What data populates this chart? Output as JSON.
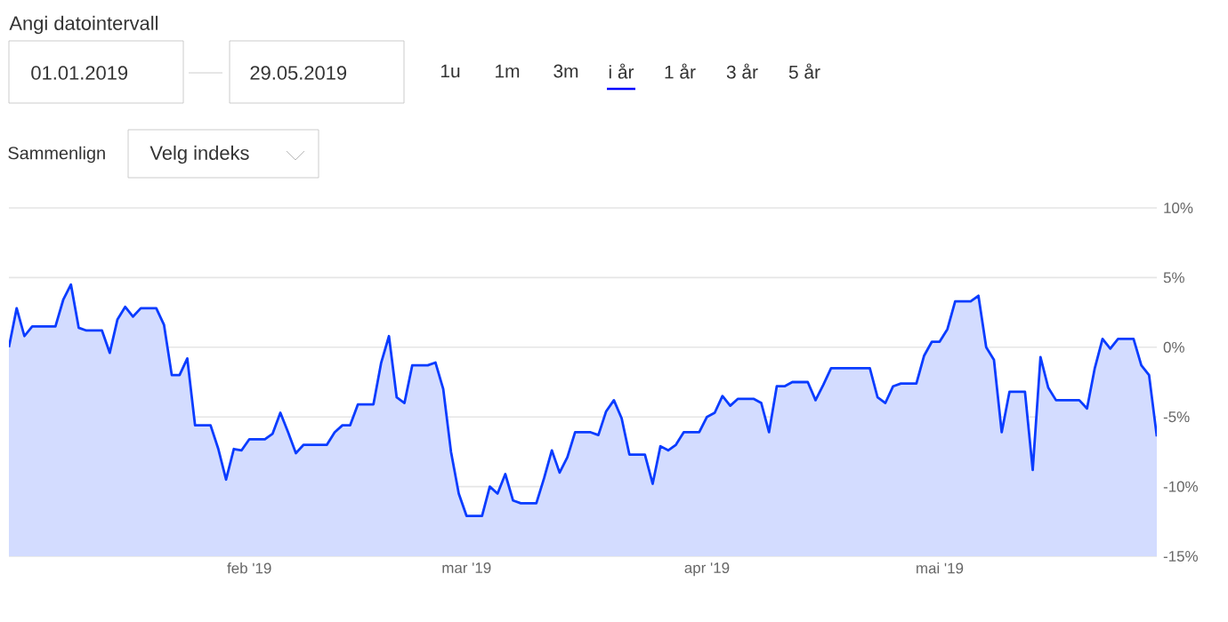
{
  "chart_data": {
    "type": "area",
    "annotations": [
      "Angi datointervall",
      "01.01.2019",
      "29.05.2019",
      "1u",
      "1m",
      "3m",
      "i år",
      "1 år",
      "3 år",
      "5 år",
      "Sammenlign",
      "Velg indeks"
    ],
    "x": [
      "2019-01-01",
      "2019-01-02",
      "2019-01-03",
      "2019-01-04",
      "2019-01-07",
      "2019-01-08",
      "2019-01-09",
      "2019-01-10",
      "2019-01-11",
      "2019-01-13",
      "2019-01-14",
      "2019-01-15",
      "2019-01-16",
      "2019-01-17",
      "2019-01-18",
      "2019-01-20",
      "2019-01-21",
      "2019-01-22",
      "2019-01-23",
      "2019-01-24",
      "2019-01-25",
      "2019-01-27",
      "2019-01-28",
      "2019-01-29",
      "2019-01-30",
      "2019-01-31",
      "2019-02-01",
      "2019-02-03",
      "2019-02-04",
      "2019-02-05",
      "2019-02-06",
      "2019-02-07",
      "2019-02-08",
      "2019-02-11",
      "2019-02-12",
      "2019-02-13",
      "2019-02-14",
      "2019-02-15",
      "2019-02-17",
      "2019-02-18",
      "2019-02-19",
      "2019-02-20",
      "2019-02-21",
      "2019-02-22",
      "2019-02-24",
      "2019-02-25",
      "2019-02-26",
      "2019-02-27",
      "2019-02-28",
      "2019-03-01",
      "2019-03-03",
      "2019-03-04",
      "2019-03-05",
      "2019-03-06",
      "2019-03-07",
      "2019-03-08",
      "2019-03-10",
      "2019-03-11",
      "2019-03-12",
      "2019-03-13",
      "2019-03-14",
      "2019-03-15",
      "2019-03-17",
      "2019-03-18",
      "2019-03-19",
      "2019-03-20",
      "2019-03-21",
      "2019-03-22",
      "2019-03-24",
      "2019-03-25",
      "2019-03-26",
      "2019-03-27",
      "2019-03-28",
      "2019-03-29",
      "2019-03-31",
      "2019-04-01",
      "2019-04-02",
      "2019-04-03",
      "2019-04-04",
      "2019-04-05",
      "2019-04-07",
      "2019-04-08",
      "2019-04-09",
      "2019-04-10",
      "2019-04-11",
      "2019-04-12",
      "2019-04-14",
      "2019-04-15",
      "2019-04-16",
      "2019-04-17",
      "2019-04-22",
      "2019-04-23",
      "2019-04-24",
      "2019-04-25",
      "2019-04-26",
      "2019-04-28",
      "2019-04-29",
      "2019-04-30",
      "2019-05-01",
      "2019-05-02",
      "2019-05-03",
      "2019-05-05",
      "2019-05-06",
      "2019-05-07",
      "2019-05-08",
      "2019-05-09",
      "2019-05-10",
      "2019-05-12",
      "2019-05-13",
      "2019-05-14",
      "2019-05-15",
      "2019-05-16",
      "2019-05-19",
      "2019-05-20",
      "2019-05-21",
      "2019-05-22",
      "2019-05-23",
      "2019-05-24",
      "2019-05-26",
      "2019-05-27",
      "2019-05-28",
      "2019-05-29"
    ],
    "series": [
      {
        "color": "#0a3cff",
        "values": [
          0,
          2.8,
          0.8,
          1.5,
          1.5,
          3.4,
          4.5,
          1.4,
          1.2,
          1.2,
          -0.4,
          2.0,
          2.9,
          2.2,
          2.8,
          2.8,
          1.6,
          -2.0,
          -2.0,
          -0.8,
          -5.6,
          -5.6,
          -7.3,
          -9.5,
          -7.3,
          -7.4,
          -6.6,
          -6.6,
          -6.2,
          -4.7,
          -6.1,
          -7.6,
          -7.0,
          -7.0,
          -6.1,
          -5.6,
          -5.6,
          -4.1,
          -4.1,
          -1.1,
          0.8,
          -3.6,
          -4.0,
          -1.3,
          -1.3,
          -1.1,
          -3.0,
          -7.5,
          -10.5,
          -12.1,
          -12.1,
          -10.0,
          -10.5,
          -9.1,
          -11.0,
          -11.2,
          -11.2,
          -9.4,
          -7.4,
          -9.0,
          -7.9,
          -6.1,
          -6.1,
          -6.3,
          -4.6,
          -3.8,
          -5.1,
          -7.7,
          -7.7,
          -9.8,
          -7.1,
          -7.4,
          -7.0,
          -6.1,
          -6.1,
          -5.0,
          -4.7,
          -3.5,
          -4.2,
          -3.7,
          -3.7,
          -4.0,
          -6.1,
          -2.8,
          -2.8,
          -2.5,
          -2.5,
          -3.8,
          -2.7,
          -1.5,
          -1.5,
          -3.6,
          -4.0,
          -2.8,
          -2.6,
          -2.6,
          -0.6,
          0.4,
          0.4,
          1.3,
          3.3,
          3.3,
          3.7,
          0,
          -0.9,
          -6.1,
          -3.2,
          -3.2,
          -8.8,
          -0.7,
          -2.9,
          -3.8,
          -3.8,
          -4.4,
          -1.5,
          0.6,
          -0.1,
          0.6,
          0.6,
          -1.3,
          -2.0,
          -6.4
        ]
      }
    ],
    "xlim": [
      "2019-01-01",
      "2019-05-29"
    ],
    "xticks": [
      {
        "value": "2019-02-01",
        "label": "feb '19"
      },
      {
        "value": "2019-03-01",
        "label": "mar '19"
      },
      {
        "value": "2019-04-01",
        "label": "apr '19"
      },
      {
        "value": "2019-05-01",
        "label": "mai '19"
      }
    ],
    "ylim": [
      -15,
      10
    ],
    "yticks": [
      {
        "value": -15,
        "label": "-15%"
      },
      {
        "value": -10,
        "label": "-10%"
      },
      {
        "value": -5,
        "label": "-5%"
      },
      {
        "value": 0,
        "label": "0%"
      },
      {
        "value": 5,
        "label": "5%"
      },
      {
        "value": 10,
        "label": "10%"
      }
    ],
    "grid": "y"
  }
}
